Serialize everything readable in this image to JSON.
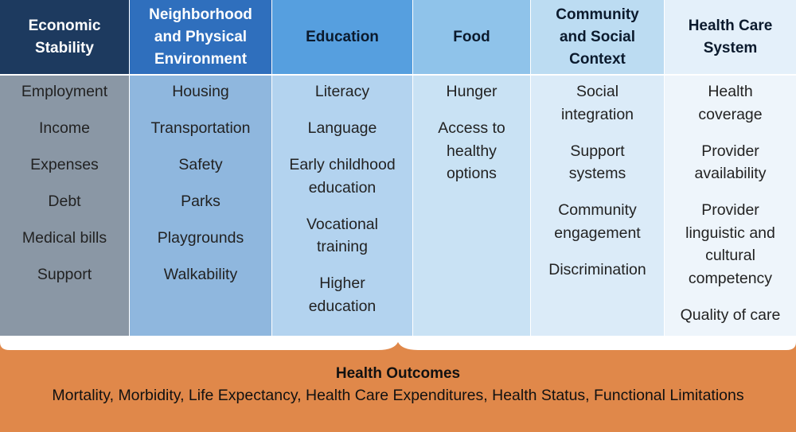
{
  "columns": [
    {
      "title": "Economic Stability",
      "title_lines": [
        "Economic",
        "Stability"
      ],
      "items": [
        "Employment",
        "Income",
        "Expenses",
        "Debt",
        "Medical bills",
        "Support"
      ],
      "head_color": "#1d3a5f",
      "head_text": "#ffffff",
      "body_color": "#8a97a5"
    },
    {
      "title": "Neighborhood and Physical Environment",
      "title_lines": [
        "Neighborhood",
        "and Physical",
        "Environment"
      ],
      "items": [
        "Housing",
        "Transportation",
        "Safety",
        "Parks",
        "Playgrounds",
        "Walkability"
      ],
      "head_color": "#2f6fbd",
      "head_text": "#ffffff",
      "body_color": "#8fb7de"
    },
    {
      "title": "Education",
      "title_lines": [
        "Education"
      ],
      "items": [
        "Literacy",
        "Language",
        "Early childhood education",
        "Vocational training",
        "Higher education"
      ],
      "items_lines": [
        [
          "Literacy"
        ],
        [
          "Language"
        ],
        [
          "Early childhood",
          "education"
        ],
        [
          "Vocational",
          "training"
        ],
        [
          "Higher",
          "education"
        ]
      ],
      "head_color": "#569fdf",
      "head_text": "#0b1a2d",
      "body_color": "#b3d3ef"
    },
    {
      "title": "Food",
      "title_lines": [
        "Food"
      ],
      "items": [
        "Hunger",
        "Access to healthy options"
      ],
      "items_lines": [
        [
          "Hunger"
        ],
        [
          "Access to",
          "healthy",
          "options"
        ]
      ],
      "head_color": "#8fc3ea",
      "head_text": "#0b1a2d",
      "body_color": "#c9e2f4"
    },
    {
      "title": "Community and Social Context",
      "title_lines": [
        "Community",
        "and Social",
        "Context"
      ],
      "items": [
        "Social integration",
        "Support systems",
        "Community engagement",
        "Discrimination"
      ],
      "items_lines": [
        [
          "Social",
          "integration"
        ],
        [
          "Support",
          "systems"
        ],
        [
          "Community",
          "engagement"
        ],
        [
          "Discrimination"
        ]
      ],
      "head_color": "#bcdcf2",
      "head_text": "#0b1a2d",
      "body_color": "#dbebf8"
    },
    {
      "title": "Health Care System",
      "title_lines": [
        "Health Care",
        "System"
      ],
      "items": [
        "Health coverage",
        "Provider availability",
        "Provider linguistic and cultural competency",
        "Quality of care"
      ],
      "items_lines": [
        [
          "Health",
          "coverage"
        ],
        [
          "Provider",
          "availability"
        ],
        [
          "Provider",
          "linguistic and",
          "cultural",
          "competency"
        ],
        [
          "Quality of care"
        ]
      ],
      "head_color": "#e4f0fa",
      "head_text": "#0b1a2d",
      "body_color": "#eef5fb"
    }
  ],
  "outcomes": {
    "title": "Health Outcomes",
    "text": "Mortality, Morbidity, Life Expectancy, Health Care Expenditures, Health Status, Functional Limitations",
    "color": "#e0884a"
  }
}
